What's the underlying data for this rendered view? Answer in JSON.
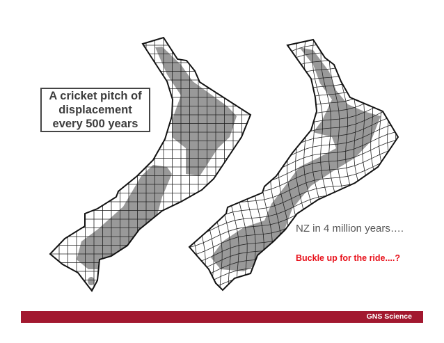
{
  "callout": {
    "lines": [
      "A cricket pitch of",
      "displacement",
      "every 500 years"
    ]
  },
  "caption": "NZ in 4 million years….",
  "tagline": "Buckle up for the ride....?",
  "footer": {
    "label": "GNS Science"
  },
  "colors": {
    "footer_bar": "#a2182f",
    "tagline": "#e8101a",
    "land": "#999999"
  }
}
